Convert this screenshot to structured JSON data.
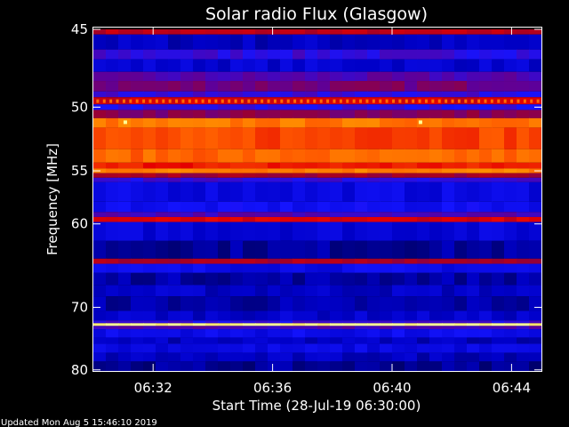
{
  "chart_data": {
    "type": "heatmap",
    "title": "Solar radio Flux (Glasgow)",
    "xlabel": "Start Time (28-Jul-19 06:30:00)",
    "ylabel": "Frequency [MHz]",
    "x_ticks": [
      "06:32",
      "06:36",
      "06:40",
      "06:44"
    ],
    "x_tick_minutes": [
      2,
      6,
      10,
      14
    ],
    "x_range_minutes": [
      0,
      15
    ],
    "y_ticks": [
      45,
      50,
      55,
      60,
      70,
      80
    ],
    "y_range_mhz": [
      44.9,
      80.2
    ],
    "y_scale": "reciprocal",
    "colormap": [
      "#000050",
      "#0000c8",
      "#1414ff",
      "#5a00a0",
      "#a00028",
      "#e60000",
      "#ff5a00",
      "#ffa000",
      "#ffff96"
    ],
    "bands": [
      {
        "f0": 45.0,
        "f1": 45.3,
        "level": 0.55
      },
      {
        "f0": 45.3,
        "f1": 46.2,
        "level": 0.12
      },
      {
        "f0": 46.2,
        "f1": 46.8,
        "level": 0.3
      },
      {
        "f0": 46.8,
        "f1": 47.6,
        "level": 0.15
      },
      {
        "f0": 47.6,
        "f1": 48.2,
        "level": 0.35
      },
      {
        "f0": 48.2,
        "f1": 48.9,
        "level": 0.42
      },
      {
        "f0": 48.9,
        "f1": 49.3,
        "level": 0.3
      },
      {
        "f0": 49.3,
        "f1": 49.8,
        "level": 0.58
      },
      {
        "f0": 49.8,
        "f1": 50.2,
        "level": 0.28
      },
      {
        "f0": 50.2,
        "f1": 50.8,
        "level": 0.45
      },
      {
        "f0": 50.8,
        "f1": 51.5,
        "level": 0.8
      },
      {
        "f0": 51.5,
        "f1": 53.2,
        "level": 0.72
      },
      {
        "f0": 53.2,
        "f1": 54.3,
        "level": 0.77
      },
      {
        "f0": 54.3,
        "f1": 54.8,
        "level": 0.66
      },
      {
        "f0": 54.8,
        "f1": 55.2,
        "level": 0.82
      },
      {
        "f0": 55.2,
        "f1": 55.6,
        "level": 0.5
      },
      {
        "f0": 55.6,
        "f1": 56.0,
        "level": 0.3
      },
      {
        "f0": 56.0,
        "f1": 57.8,
        "level": 0.18
      },
      {
        "f0": 57.8,
        "f1": 58.8,
        "level": 0.22
      },
      {
        "f0": 58.8,
        "f1": 59.3,
        "level": 0.35
      },
      {
        "f0": 59.3,
        "f1": 59.8,
        "level": 0.6
      },
      {
        "f0": 59.8,
        "f1": 61.8,
        "level": 0.16
      },
      {
        "f0": 61.8,
        "f1": 63.8,
        "level": 0.08
      },
      {
        "f0": 63.8,
        "f1": 64.4,
        "level": 0.52
      },
      {
        "f0": 64.4,
        "f1": 65.5,
        "level": 0.2
      },
      {
        "f0": 65.5,
        "f1": 67.0,
        "level": 0.09
      },
      {
        "f0": 67.0,
        "f1": 68.5,
        "level": 0.13
      },
      {
        "f0": 68.5,
        "f1": 70.5,
        "level": 0.09
      },
      {
        "f0": 70.5,
        "f1": 71.9,
        "level": 0.14
      },
      {
        "f0": 71.9,
        "f1": 72.3,
        "level": 0.3
      },
      {
        "f0": 72.3,
        "f1": 72.7,
        "level": 1.0
      },
      {
        "f0": 72.7,
        "f1": 73.2,
        "level": 0.35
      },
      {
        "f0": 73.2,
        "f1": 74.5,
        "level": 0.2
      },
      {
        "f0": 74.5,
        "f1": 75.5,
        "level": 0.12
      },
      {
        "f0": 75.5,
        "f1": 77.0,
        "level": 0.18
      },
      {
        "f0": 77.0,
        "f1": 78.5,
        "level": 0.12
      },
      {
        "f0": 78.5,
        "f1": 80.2,
        "level": 0.07
      }
    ],
    "hotspots": [
      {
        "minute": 1.07,
        "mhz": 51.1
      },
      {
        "minute": 10.95,
        "mhz": 51.1
      }
    ],
    "grid": false,
    "legend": "none"
  },
  "footer": {
    "updated": "Updated Mon Aug  5 15:46:10 2019"
  }
}
